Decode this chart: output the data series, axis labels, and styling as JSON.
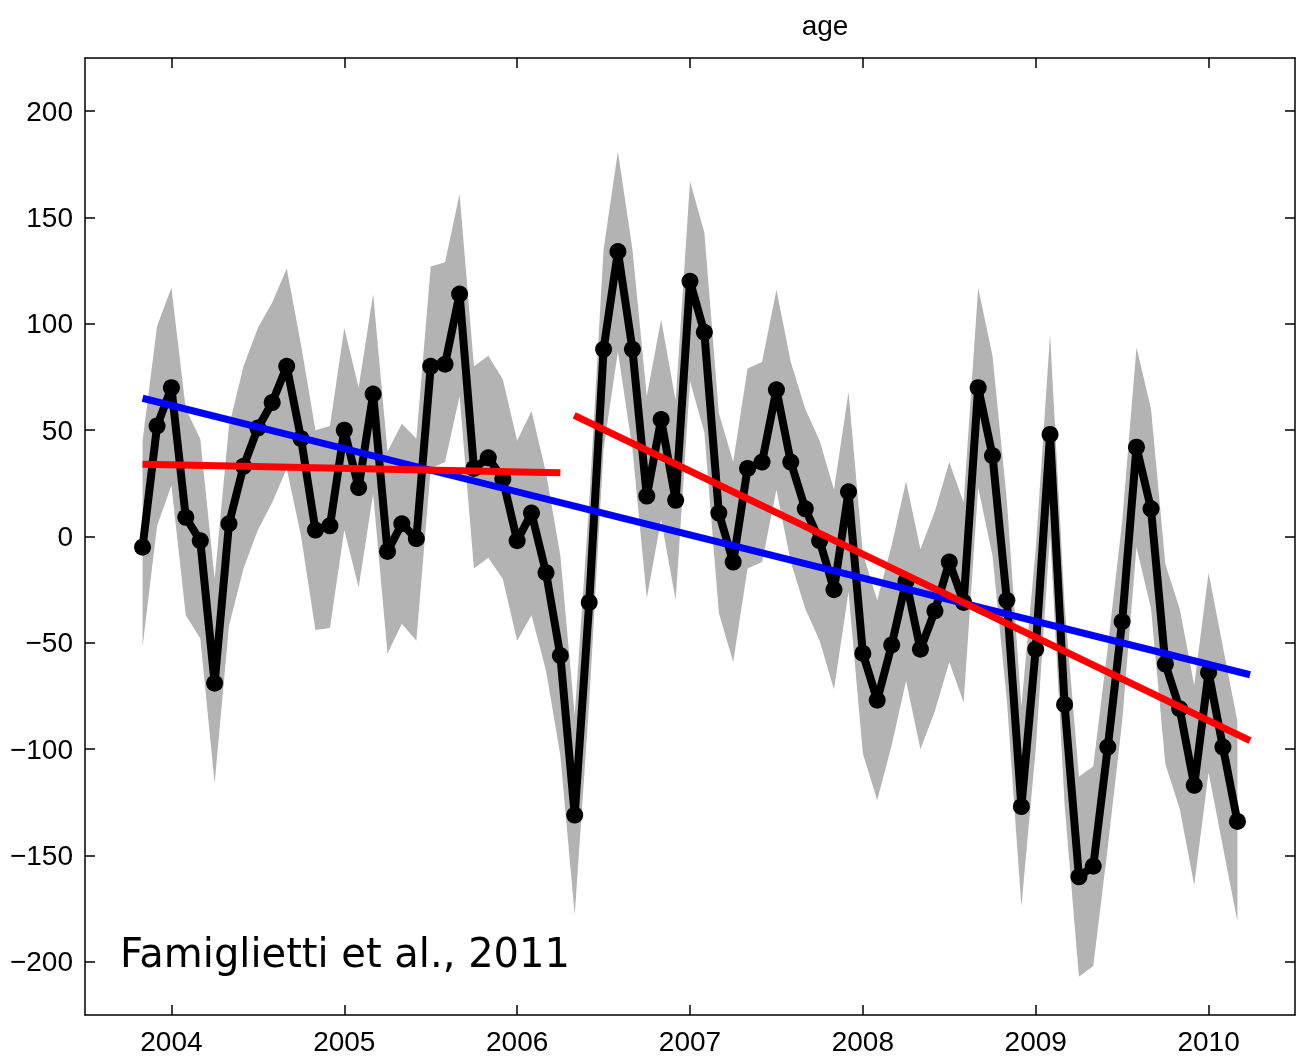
{
  "chart_data": {
    "type": "line",
    "title": "age",
    "x": [
      2003.833,
      2003.917,
      2004.0,
      2004.083,
      2004.167,
      2004.25,
      2004.333,
      2004.417,
      2004.5,
      2004.583,
      2004.667,
      2004.75,
      2004.833,
      2004.917,
      2005.0,
      2005.083,
      2005.167,
      2005.25,
      2005.333,
      2005.417,
      2005.5,
      2005.583,
      2005.667,
      2005.75,
      2005.833,
      2005.917,
      2006.0,
      2006.083,
      2006.167,
      2006.25,
      2006.333,
      2006.417,
      2006.5,
      2006.583,
      2006.667,
      2006.75,
      2006.833,
      2006.917,
      2007.0,
      2007.083,
      2007.167,
      2007.25,
      2007.333,
      2007.417,
      2007.5,
      2007.583,
      2007.667,
      2007.75,
      2007.833,
      2007.917,
      2008.0,
      2008.083,
      2008.167,
      2008.25,
      2008.333,
      2008.417,
      2008.5,
      2008.583,
      2008.667,
      2008.75,
      2008.833,
      2008.917,
      2009.0,
      2009.083,
      2009.167,
      2009.25,
      2009.333,
      2009.417,
      2009.5,
      2009.583,
      2009.667,
      2009.75,
      2009.833,
      2009.917,
      2010.0,
      2010.083,
      2010.167
    ],
    "series": [
      {
        "color": "#000000",
        "marker": "circle",
        "values": [
          -5,
          52,
          70,
          9,
          -2,
          -69,
          6,
          33,
          51,
          63,
          80,
          46,
          3,
          5,
          50,
          23,
          67,
          -7,
          6,
          -1,
          80,
          81,
          114,
          32,
          37,
          27,
          -2,
          11,
          -17,
          -56,
          -131,
          -31,
          88,
          134,
          88,
          19,
          55,
          17,
          120,
          96,
          11,
          -12,
          32,
          35,
          69,
          35,
          13,
          -2,
          -25,
          21,
          -55,
          -77,
          -51,
          -21,
          -53,
          -35,
          -12,
          -31,
          70,
          38,
          -30,
          -127,
          -53,
          48,
          -79,
          -160,
          -155,
          -99,
          -40,
          42,
          13,
          -60,
          -81,
          -117,
          -64,
          -99,
          -134
        ],
        "lower": [
          -52,
          5,
          24,
          -37,
          -48,
          -116,
          -42,
          -15,
          3,
          16,
          32,
          0,
          -44,
          -43,
          3,
          -24,
          20,
          -55,
          -41,
          -49,
          32,
          35,
          66,
          -15,
          -10,
          -20,
          -49,
          -37,
          -63,
          -103,
          -178,
          -78,
          41,
          87,
          41,
          -29,
          8,
          -30,
          73,
          49,
          -36,
          -59,
          -15,
          -12,
          22,
          -12,
          -34,
          -49,
          -72,
          -26,
          -102,
          -124,
          -98,
          -68,
          -100,
          -82,
          -59,
          -78,
          23,
          -9,
          -77,
          -174,
          -100,
          1,
          -126,
          -207,
          -202,
          -146,
          -87,
          -5,
          -34,
          -107,
          -128,
          -164,
          -111,
          -146,
          -181
        ],
        "upper": [
          45,
          99,
          117,
          60,
          46,
          -20,
          52,
          80,
          98,
          110,
          126,
          90,
          50,
          52,
          98,
          70,
          114,
          40,
          53,
          46,
          127,
          129,
          161,
          80,
          85,
          74,
          45,
          59,
          30,
          -9,
          -84,
          16,
          135,
          181,
          135,
          66,
          102,
          64,
          167,
          143,
          58,
          35,
          79,
          82,
          116,
          82,
          60,
          45,
          22,
          68,
          -8,
          -30,
          -4,
          26,
          -6,
          12,
          35,
          16,
          117,
          85,
          17,
          -80,
          -6,
          95,
          -32,
          -113,
          -108,
          -52,
          7,
          89,
          60,
          -13,
          -34,
          -70,
          -17,
          -52,
          -87
        ]
      },
      {
        "color": "#0000ff",
        "marker": "none",
        "x": [
          2003.833,
          2010.24
        ],
        "values": [
          65,
          -65
        ]
      },
      {
        "color": "#ff0000",
        "marker": "none",
        "x": [
          2003.833,
          2006.25
        ],
        "values": [
          34,
          30
        ]
      },
      {
        "color": "#ff0000",
        "marker": "none",
        "x": [
          2006.33,
          2010.24
        ],
        "values": [
          57,
          -96
        ]
      }
    ],
    "xlim": [
      2003.5,
      2010.5
    ],
    "xticks": [
      2004,
      2005,
      2006,
      2007,
      2008,
      2009,
      2010
    ],
    "ylim": [
      -225,
      225
    ],
    "yticks": [
      -200,
      -150,
      -100,
      -50,
      0,
      50,
      100,
      150,
      200
    ],
    "grid": false,
    "legend": false,
    "annotations": [
      "Famiglietti et al., 2011"
    ]
  }
}
